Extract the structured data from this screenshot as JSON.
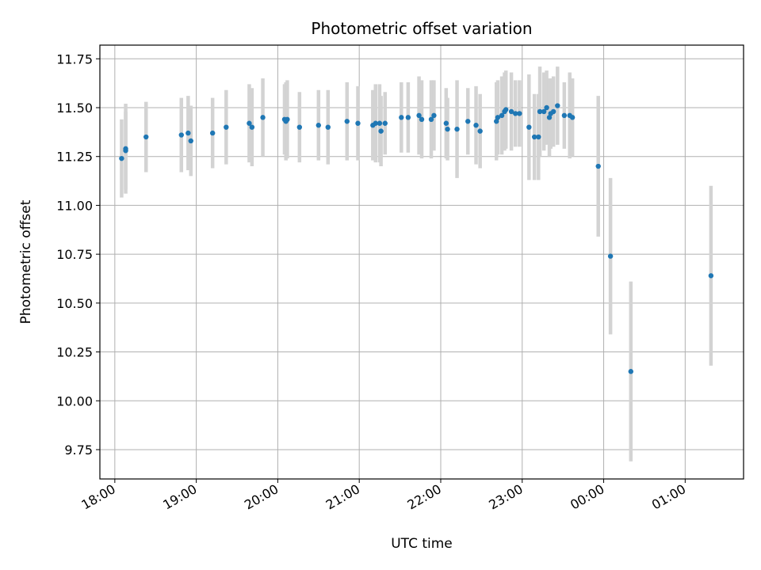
{
  "chart_data": {
    "type": "scatter",
    "title": "Photometric offset variation",
    "xlabel": "UTC time",
    "ylabel": "Photometric offset",
    "xlim": [
      "17:49",
      "01:43"
    ],
    "ylim": [
      9.6,
      11.82
    ],
    "x_ticks": [
      "18:00",
      "19:00",
      "20:00",
      "21:00",
      "22:00",
      "23:00",
      "00:00",
      "01:00"
    ],
    "y_ticks": [
      "9.75",
      "10.00",
      "10.25",
      "10.50",
      "10.75",
      "11.00",
      "11.25",
      "11.50",
      "11.75"
    ],
    "grid": true,
    "colors": {
      "point": "#1f77b4",
      "errorbar": "#d3d3d3",
      "grid": "#b0b0b0",
      "axes": "#000000"
    },
    "series": [
      {
        "x": [
          "18:05",
          "18:08",
          "18:08",
          "18:23",
          "18:49",
          "18:54",
          "18:56",
          "19:12",
          "19:22",
          "19:39",
          "19:41",
          "19:49",
          "20:05",
          "20:06",
          "20:07",
          "20:16",
          "20:30",
          "20:37",
          "20:51",
          "20:59",
          "21:10",
          "21:12",
          "21:15",
          "21:16",
          "21:19",
          "21:31",
          "21:36",
          "21:44",
          "21:46",
          "21:53",
          "21:55",
          "22:04",
          "22:05",
          "22:12",
          "22:20",
          "22:26",
          "22:29",
          "22:41",
          "22:42",
          "22:45",
          "22:47",
          "22:48",
          "22:52",
          "22:55",
          "22:58",
          "23:05",
          "23:09",
          "23:12",
          "23:13",
          "23:16",
          "23:18",
          "23:20",
          "23:21",
          "23:23",
          "23:26",
          "23:31",
          "23:35",
          "23:37",
          "23:56",
          "24:05",
          "24:20",
          "25:19"
        ],
        "y": [
          11.24,
          11.28,
          11.29,
          11.35,
          11.36,
          11.37,
          11.33,
          11.37,
          11.4,
          11.42,
          11.4,
          11.45,
          11.44,
          11.43,
          11.44,
          11.4,
          11.41,
          11.4,
          11.43,
          11.42,
          11.41,
          11.42,
          11.42,
          11.38,
          11.42,
          11.45,
          11.45,
          11.46,
          11.44,
          11.44,
          11.46,
          11.42,
          11.39,
          11.39,
          11.43,
          11.41,
          11.38,
          11.43,
          11.45,
          11.46,
          11.48,
          11.49,
          11.48,
          11.47,
          11.47,
          11.4,
          11.35,
          11.35,
          11.48,
          11.48,
          11.5,
          11.45,
          11.47,
          11.48,
          11.51,
          11.46,
          11.46,
          11.45,
          11.2,
          10.74,
          10.15,
          10.64
        ],
        "err": [
          0.2,
          0.2,
          0.23,
          0.18,
          0.19,
          0.19,
          0.18,
          0.18,
          0.19,
          0.2,
          0.2,
          0.2,
          0.18,
          0.2,
          0.2,
          0.18,
          0.18,
          0.19,
          0.2,
          0.19,
          0.18,
          0.2,
          0.2,
          0.18,
          0.16,
          0.18,
          0.18,
          0.2,
          0.2,
          0.2,
          0.18,
          0.18,
          0.16,
          0.25,
          0.17,
          0.2,
          0.19,
          0.2,
          0.19,
          0.2,
          0.2,
          0.2,
          0.2,
          0.17,
          0.17,
          0.27,
          0.22,
          0.22,
          0.23,
          0.2,
          0.19,
          0.2,
          0.18,
          0.18,
          0.2,
          0.17,
          0.22,
          0.2,
          0.36,
          0.4,
          0.46,
          0.46
        ]
      }
    ]
  }
}
